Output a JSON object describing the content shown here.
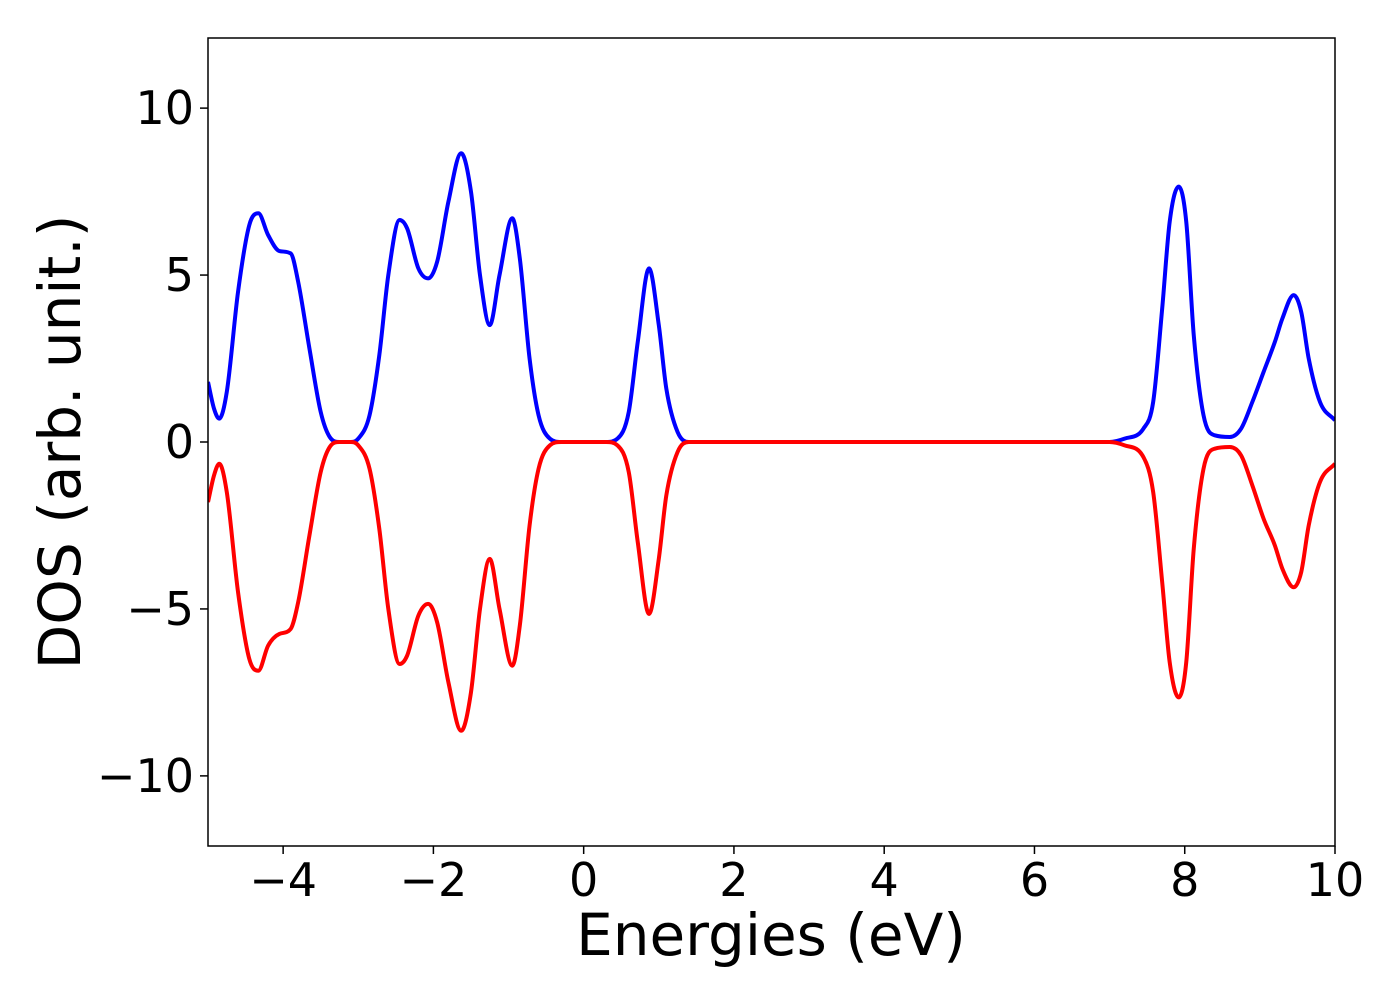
{
  "chart_data": {
    "type": "line",
    "xlabel": "Energies (eV)",
    "ylabel": "DOS (arb. unit.)",
    "x": [
      -5,
      -4.92,
      -4.85,
      -4.75,
      -4.6,
      -4.45,
      -4.33,
      -4.2,
      -4.05,
      -3.9,
      -3.8,
      -3.65,
      -3.5,
      -3.38,
      -3.25,
      -3.1,
      -3.0,
      -2.85,
      -2.72,
      -2.6,
      -2.45,
      -2.35,
      -2.2,
      -2.07,
      -1.95,
      -1.8,
      -1.63,
      -1.5,
      -1.38,
      -1.25,
      -1.12,
      -0.95,
      -0.85,
      -0.72,
      -0.6,
      -0.45,
      -0.3,
      0.3,
      0.45,
      0.6,
      0.72,
      0.87,
      1.0,
      1.1,
      1.25,
      1.4,
      7.0,
      7.2,
      7.45,
      7.58,
      7.7,
      7.8,
      7.92,
      8.02,
      8.12,
      8.25,
      8.4,
      8.6,
      8.75,
      8.9,
      9.05,
      9.2,
      9.3,
      9.45,
      9.55,
      9.65,
      9.8,
      10
    ],
    "series": [
      {
        "color": "#0000ff",
        "values": [
          1.8,
          1.0,
          0.7,
          1.5,
          4.5,
          6.5,
          6.85,
          6.2,
          5.72,
          5.65,
          4.8,
          2.8,
          0.9,
          0.15,
          0.0,
          0.0,
          0.1,
          0.8,
          2.6,
          5.0,
          6.65,
          6.4,
          5.2,
          4.9,
          5.4,
          7.2,
          8.65,
          7.5,
          5.0,
          3.5,
          5.0,
          6.7,
          5.5,
          2.5,
          0.8,
          0.1,
          0.0,
          0.0,
          0.1,
          0.9,
          3.0,
          5.2,
          3.5,
          1.6,
          0.3,
          0.0,
          0.0,
          0.1,
          0.4,
          1.2,
          4.0,
          6.6,
          7.65,
          6.6,
          3.2,
          0.8,
          0.2,
          0.15,
          0.4,
          1.2,
          2.1,
          3.0,
          3.7,
          4.4,
          3.9,
          2.5,
          1.2,
          0.65
        ]
      },
      {
        "color": "#ff0000",
        "values": [
          -1.8,
          -1.0,
          -0.65,
          -1.5,
          -4.5,
          -6.5,
          -6.85,
          -6.1,
          -5.75,
          -5.6,
          -4.8,
          -2.8,
          -0.9,
          -0.15,
          0.0,
          0.0,
          -0.1,
          -0.8,
          -2.6,
          -5.0,
          -6.65,
          -6.4,
          -5.2,
          -4.85,
          -5.4,
          -7.2,
          -8.65,
          -7.5,
          -5.0,
          -3.5,
          -5.0,
          -6.7,
          -5.5,
          -2.5,
          -0.8,
          -0.1,
          0.0,
          0.0,
          -0.1,
          -0.9,
          -3.0,
          -5.15,
          -3.5,
          -1.6,
          -0.3,
          0.0,
          0.0,
          -0.1,
          -0.45,
          -1.5,
          -4.2,
          -6.6,
          -7.65,
          -6.6,
          -3.2,
          -0.8,
          -0.2,
          -0.15,
          -0.4,
          -1.3,
          -2.3,
          -3.1,
          -3.8,
          -4.35,
          -3.9,
          -2.5,
          -1.2,
          -0.65
        ]
      }
    ],
    "xlim": [
      -5,
      10
    ],
    "xticks": [
      {
        "value": -4,
        "label": "−4"
      },
      {
        "value": -2,
        "label": "−2"
      },
      0,
      2,
      4,
      6,
      8,
      10
    ],
    "ylim": [
      -12.1,
      12.1
    ],
    "yticks": [
      {
        "value": -10,
        "label": "−10"
      },
      {
        "value": -5,
        "label": "−5"
      },
      0,
      5,
      10
    ],
    "grid": false
  }
}
